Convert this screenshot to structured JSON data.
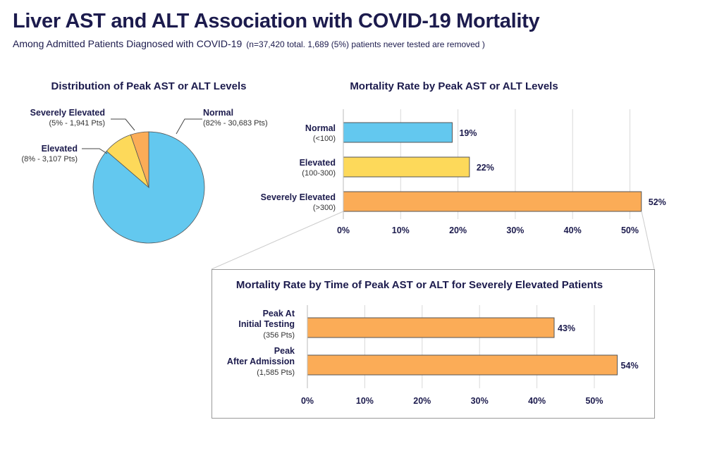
{
  "title": "Liver AST and ALT Association with COVID-19 Mortality",
  "subtitle": "Among Admitted Patients Diagnosed with COVID-19",
  "subtitle_note": "(n=37,420 total. 1,689 (5%) patients never tested are removed )",
  "colors": {
    "normal": "#63c8ef",
    "elevated": "#fdd95a",
    "severe": "#fbac57",
    "text": "#1c1b4d"
  },
  "chart_data": [
    {
      "type": "pie",
      "title": "Distribution of Peak AST or ALT Levels",
      "slices": [
        {
          "label": "Normal",
          "detail": "(82% - 30,683  Pts)",
          "value": 82,
          "patients": 30683,
          "color": "#63c8ef"
        },
        {
          "label": "Elevated",
          "detail": "(8% - 3,107 Pts)",
          "value": 8,
          "patients": 3107,
          "color": "#fdd95a"
        },
        {
          "label": "Severely Elevated",
          "detail": "(5% - 1,941 Pts)",
          "value": 5,
          "patients": 1941,
          "color": "#fbac57"
        }
      ]
    },
    {
      "type": "bar",
      "orientation": "horizontal",
      "title": "Mortality Rate by Peak AST or ALT Levels",
      "categories": [
        {
          "label": "Normal",
          "sub": "(<100)",
          "value": 19,
          "value_label": "19%",
          "color": "#63c8ef"
        },
        {
          "label": "Elevated",
          "sub": "(100-300)",
          "value": 22,
          "value_label": "22%",
          "color": "#fdd95a"
        },
        {
          "label": "Severely Elevated",
          "sub": "(>300)",
          "value": 52,
          "value_label": "52%",
          "color": "#fbac57"
        }
      ],
      "xlim": [
        0,
        55
      ],
      "xticks": [
        "0%",
        "10%",
        "20%",
        "30%",
        "40%",
        "50%"
      ],
      "xtick_values": [
        0,
        10,
        20,
        30,
        40,
        50
      ],
      "grid": true
    },
    {
      "type": "bar",
      "orientation": "horizontal",
      "title": "Mortality Rate by Time of Peak AST or ALT for Severely Elevated Patients",
      "categories": [
        {
          "label_lines": [
            "Peak At",
            "Initial Testing"
          ],
          "sub": "(356 Pts)",
          "value": 43,
          "value_label": "43%",
          "color": "#fbac57"
        },
        {
          "label_lines": [
            "Peak",
            "After Admission"
          ],
          "sub": "(1,585  Pts)",
          "value": 54,
          "value_label": "54%",
          "color": "#fbac57"
        }
      ],
      "xlim": [
        0,
        58
      ],
      "xticks": [
        "0%",
        "10%",
        "20%",
        "30%",
        "40%",
        "50%"
      ],
      "xtick_values": [
        0,
        10,
        20,
        30,
        40,
        50
      ],
      "grid": true
    }
  ]
}
